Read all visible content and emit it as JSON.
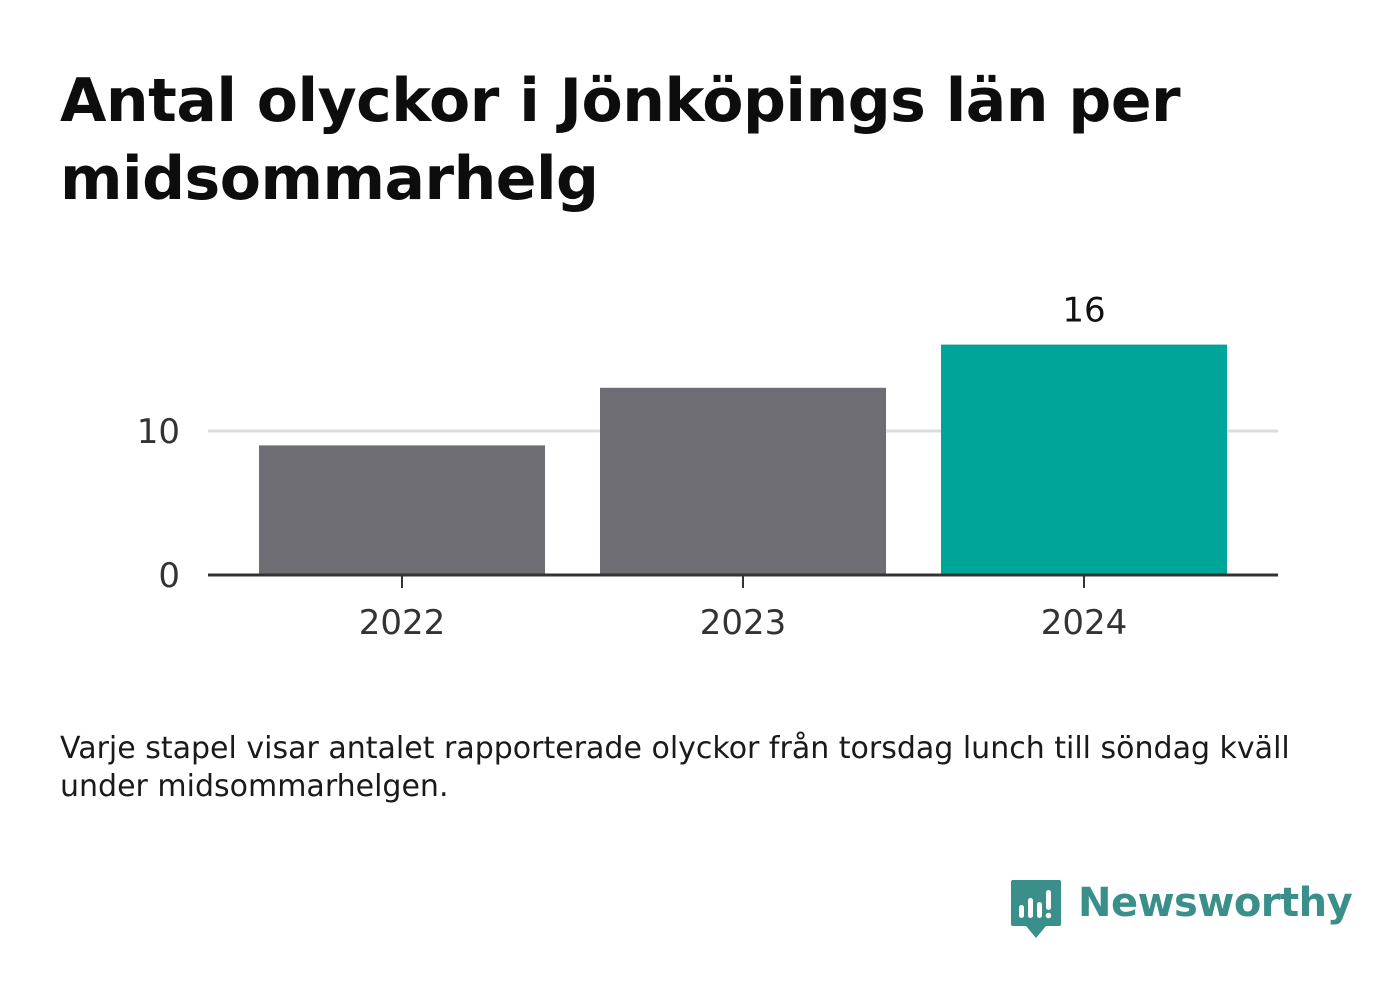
{
  "title": "Antal olyckor i Jönköpings län per midsommarhelg",
  "caption": "Varje stapel visar antalet rapporterade olyckor från torsdag lunch till söndag kväll under midsommarhelgen.",
  "brand": {
    "name": "Newsworthy",
    "icon": "newsworthy-logo-icon",
    "color": "#3b8f8a"
  },
  "chart_data": {
    "type": "bar",
    "categories": [
      "2022",
      "2023",
      "2024"
    ],
    "values": [
      9,
      13,
      16
    ],
    "highlight_index": 2,
    "highlight_label": "16",
    "y_ticks": [
      0,
      10
    ],
    "y_tick_labels": [
      "0",
      "10"
    ],
    "ylim": [
      0,
      16
    ],
    "grid": true,
    "colors": {
      "bar": "#6e6d73",
      "highlight": "#00a59a",
      "grid": "#dddddd",
      "axis": "#333333"
    }
  }
}
